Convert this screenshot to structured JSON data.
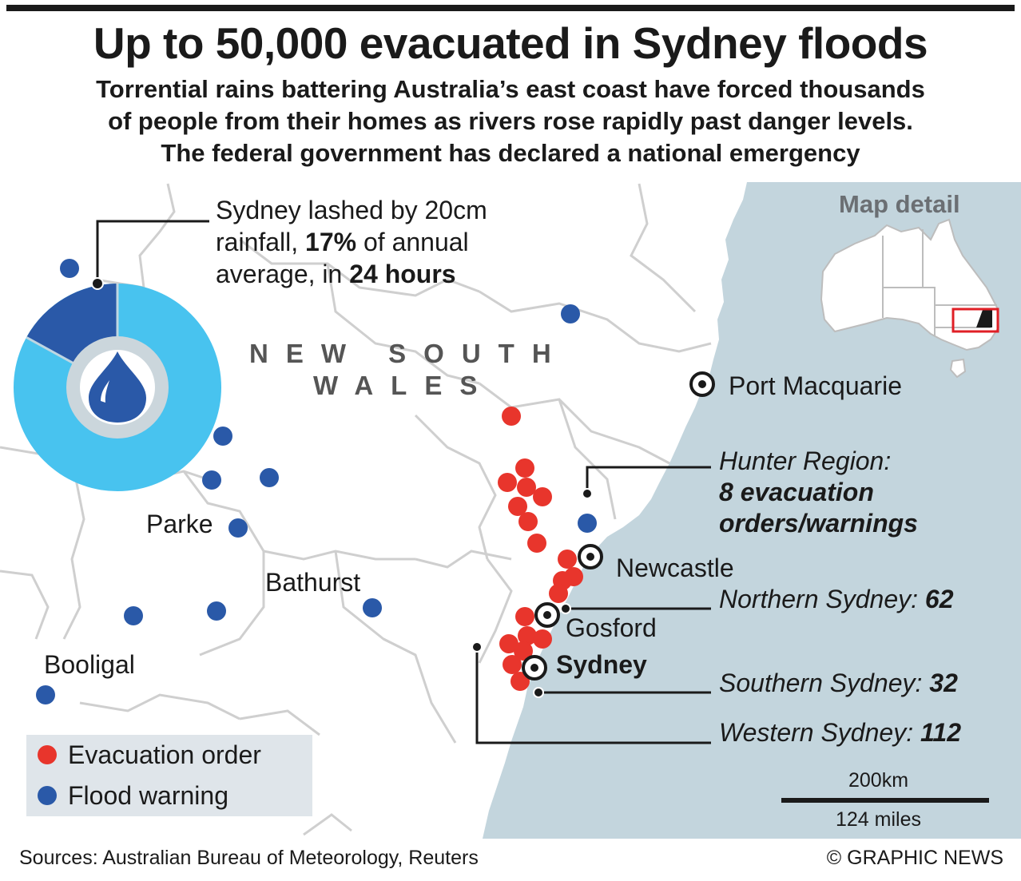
{
  "header": {
    "title": "Up to 50,000 evacuated in Sydney floods",
    "subtitle_lines": [
      "Torrential rains battering Australia’s east coast have forced thousands",
      "of people from their homes as rivers rose rapidly past danger levels.",
      "The federal government has declared a national emergency"
    ]
  },
  "map": {
    "region_label_line1": "NEW SOUTH",
    "region_label_line2": "WALES",
    "colors": {
      "sea": "#c3d5dd",
      "land": "#ffffff",
      "border": "#cfcfcf",
      "evacuation": "#e8352c",
      "flood": "#2a59a8"
    },
    "cities": [
      {
        "name": "Port Macquarie"
      },
      {
        "name": "Newcastle"
      },
      {
        "name": "Gosford"
      },
      {
        "name": "Sydney"
      },
      {
        "name": "Parke"
      },
      {
        "name": "Bathurst"
      },
      {
        "name": "Booligal"
      }
    ],
    "map_detail_title": "Map detail"
  },
  "rainfall": {
    "line1": "Sydney lashed by 20cm",
    "line2_pre": "rainfall, ",
    "line2_bold": "17%",
    "line2_post": " of annual",
    "line3_pre": "average, in ",
    "line3_bold": "24 hours",
    "share_of_annual_percent": 17,
    "icon": "water-drop-icon"
  },
  "callouts": {
    "hunter_line1": "Hunter Region:",
    "hunter_line2": "8 evacuation",
    "hunter_line3": "orders/warnings",
    "northern_label": "Northern Sydney: ",
    "northern_value": "62",
    "southern_label": "Southern Sydney: ",
    "southern_value": "32",
    "western_label": "Western Sydney: ",
    "western_value": "112"
  },
  "legend": {
    "evacuation_label": "Evacuation order",
    "flood_label": "Flood warning"
  },
  "scale": {
    "km": "200km",
    "miles": "124 miles"
  },
  "footer": {
    "sources": "Sources: Australian Bureau of Meteorology, Reuters",
    "credit": "© GRAPHIC NEWS"
  }
}
